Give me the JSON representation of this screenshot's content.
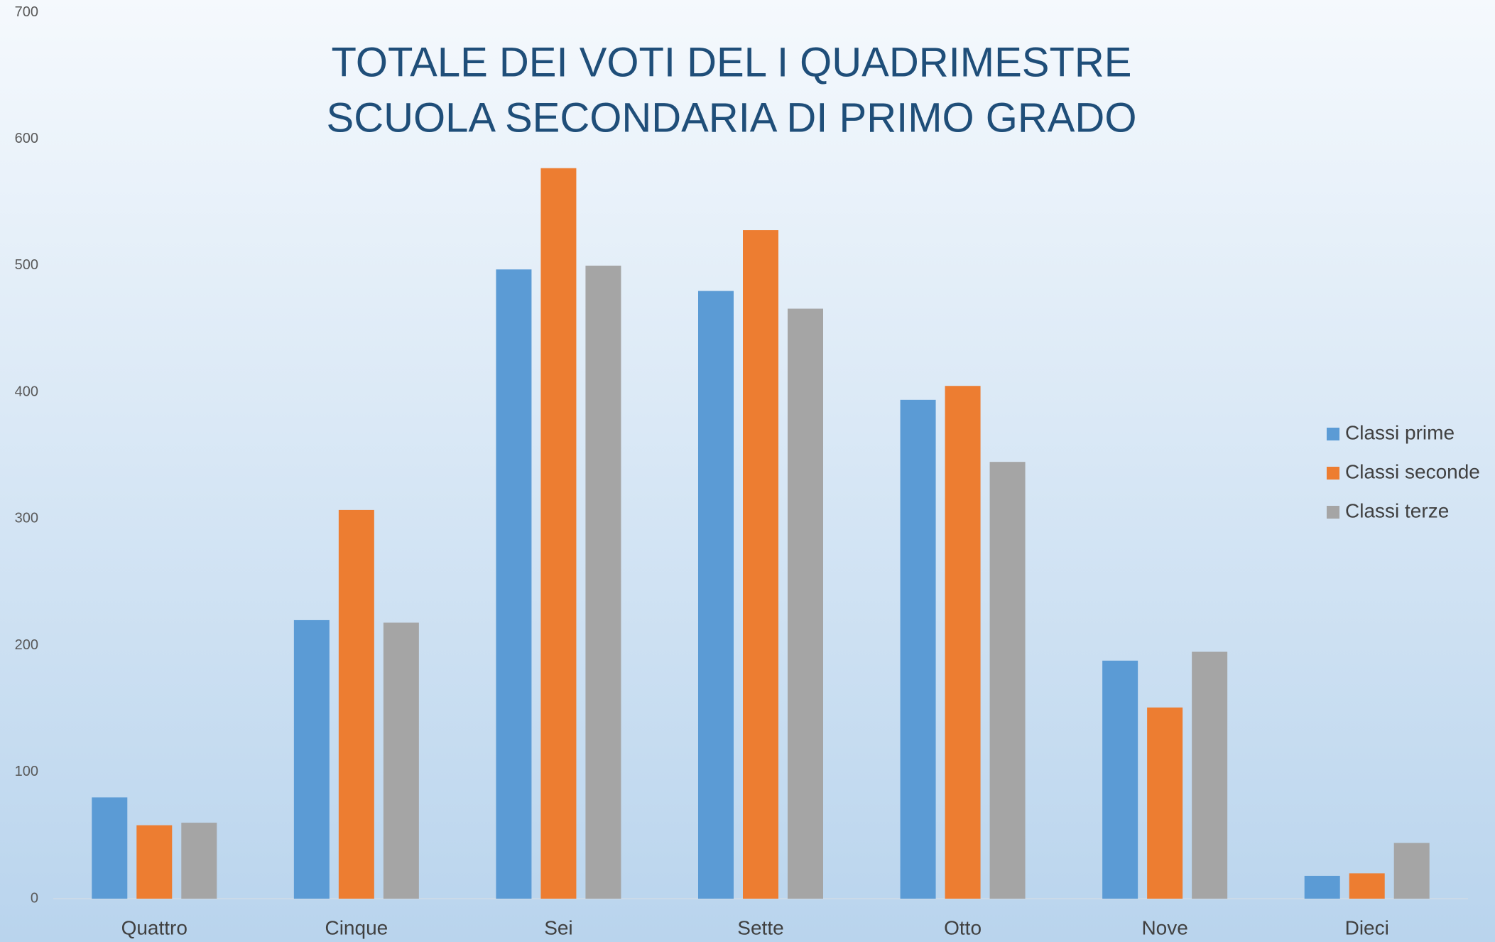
{
  "chart_data": {
    "type": "bar",
    "title": [
      "TOTALE DEI VOTI DEL I QUADRIMESTRE",
      "SCUOLA SECONDARIA DI PRIMO GRADO"
    ],
    "categories": [
      "Quattro",
      "Cinque",
      "Sei",
      "Sette",
      "Otto",
      "Nove",
      "Dieci"
    ],
    "series": [
      {
        "name": "Classi prime",
        "color": "#5b9bd5",
        "values": [
          80,
          220,
          497,
          480,
          394,
          188,
          18
        ]
      },
      {
        "name": "Classi seconde",
        "color": "#ed7d31",
        "values": [
          58,
          307,
          577,
          528,
          405,
          151,
          20
        ]
      },
      {
        "name": "Classi terze",
        "color": "#a5a5a5",
        "values": [
          60,
          218,
          500,
          466,
          345,
          195,
          44
        ]
      }
    ],
    "ylim": [
      0,
      700
    ],
    "yticks": [
      0,
      100,
      200,
      300,
      400,
      500,
      600,
      700
    ],
    "grid": false,
    "legend": "right"
  }
}
